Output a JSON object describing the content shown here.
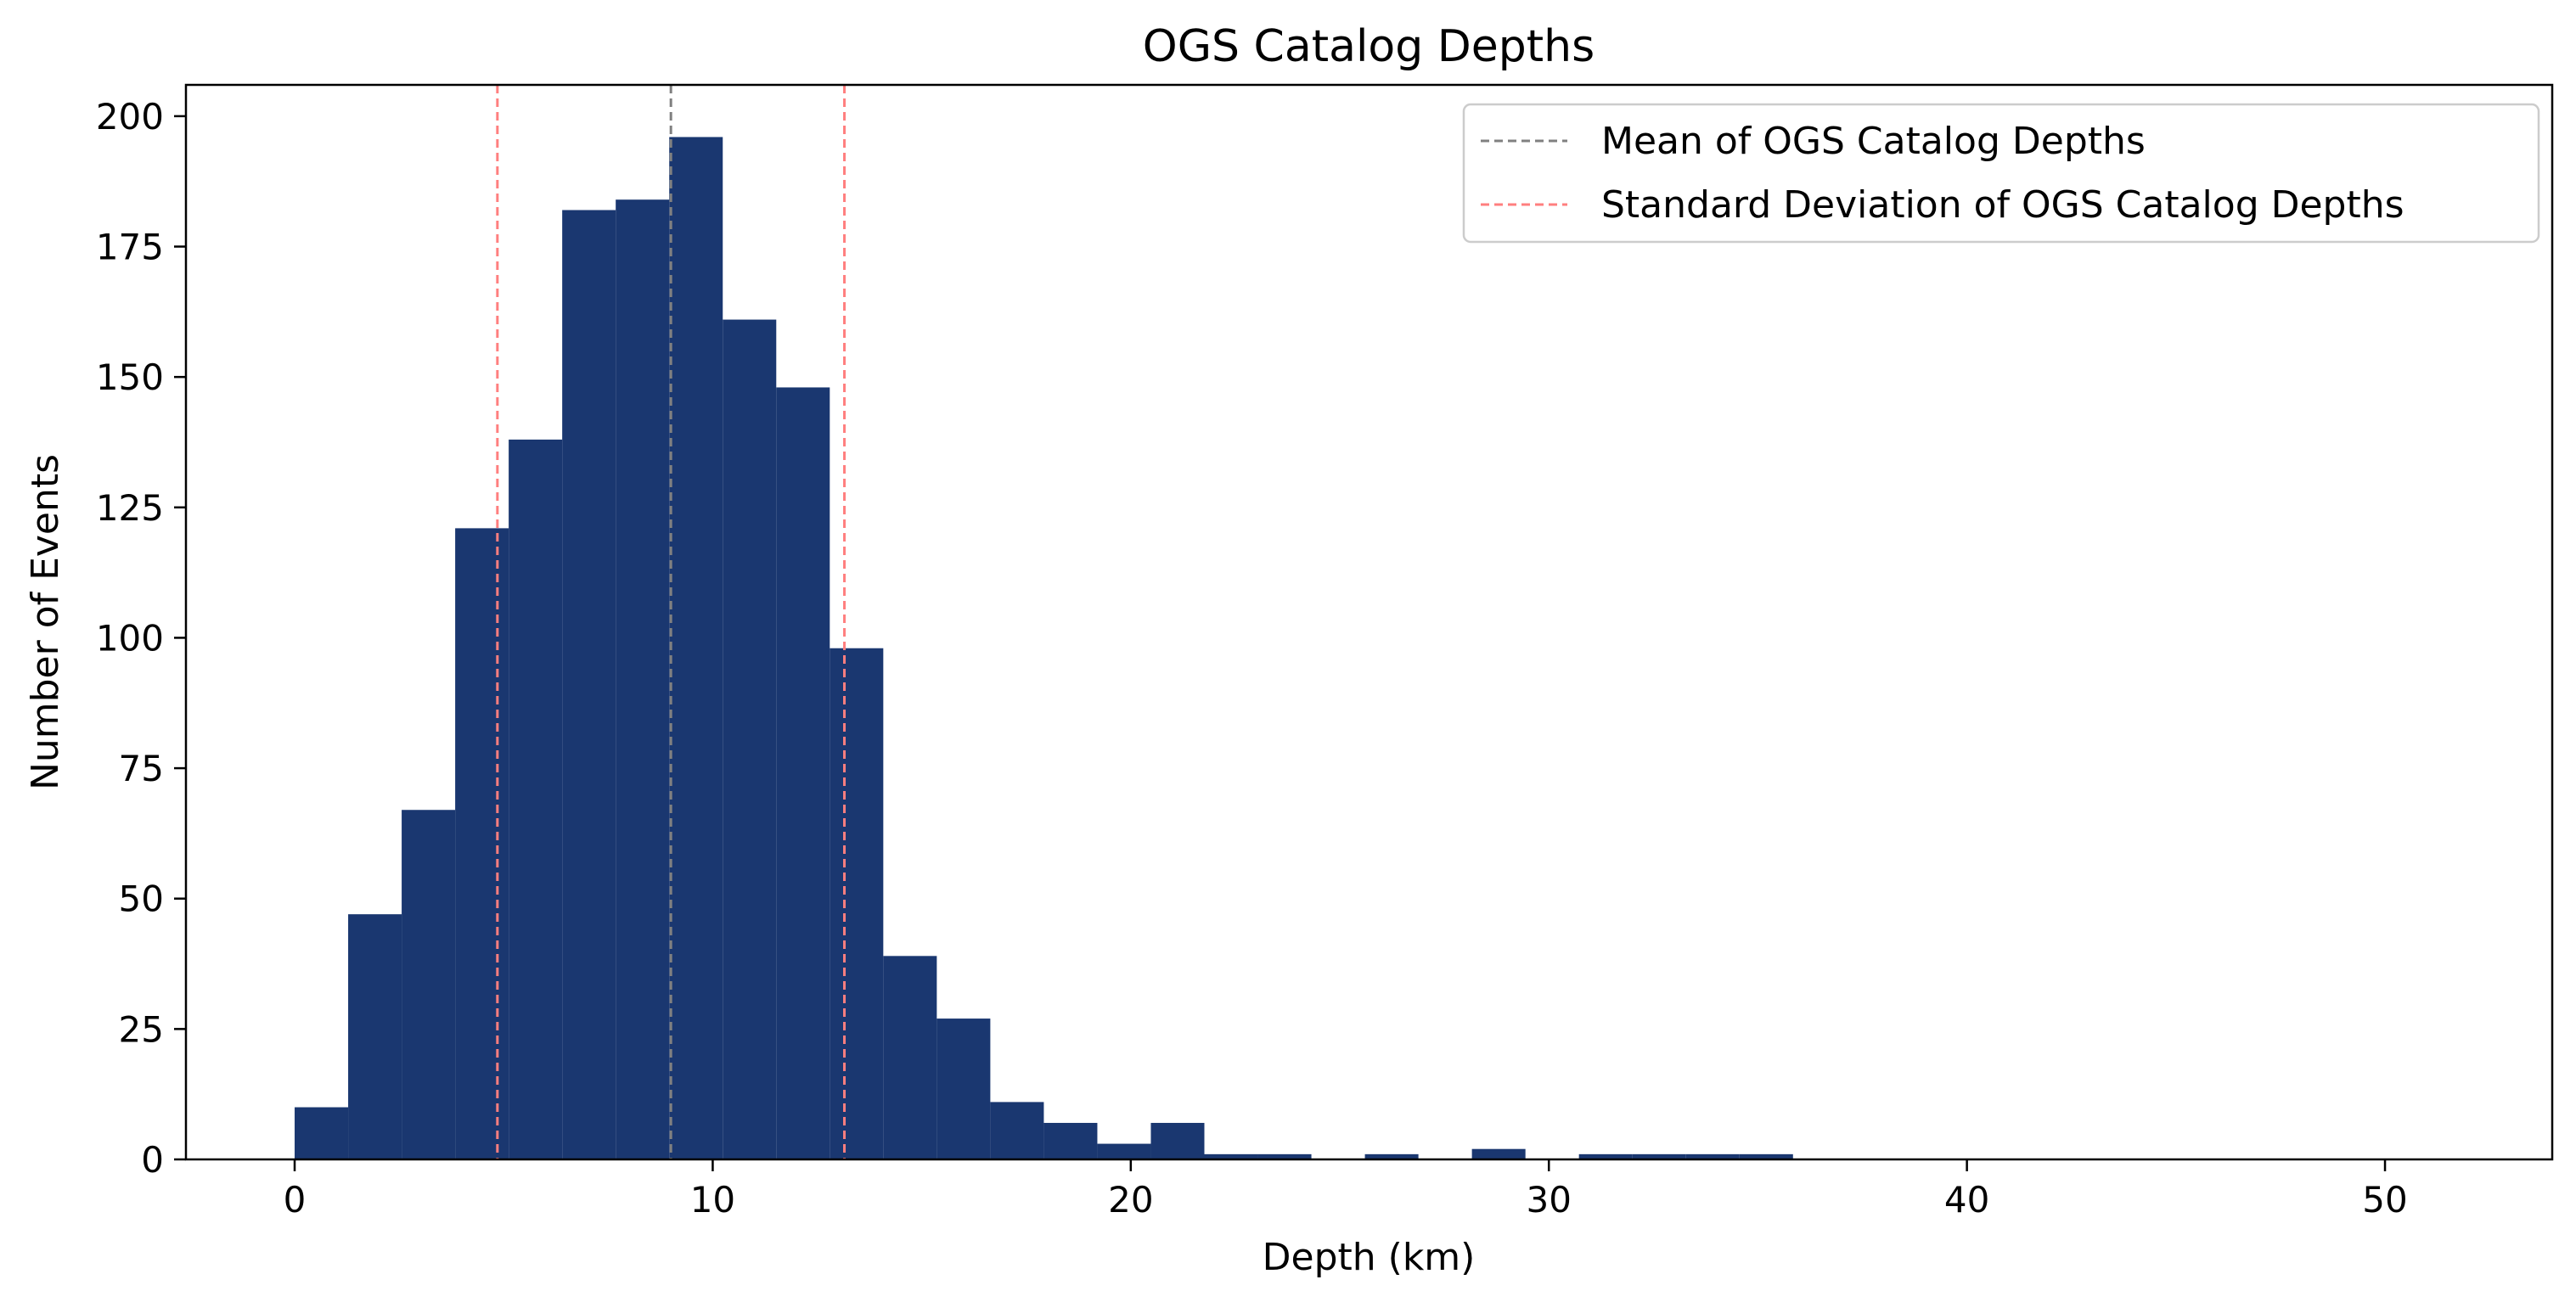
{
  "chart_data": {
    "type": "bar",
    "title": "OGS Catalog Depths",
    "xlabel": "Depth (km)",
    "ylabel": "Number of Events",
    "xlim": [
      -2.6,
      54
    ],
    "ylim": [
      0,
      206
    ],
    "x_ticks": [
      0,
      10,
      20,
      30,
      40,
      50
    ],
    "y_ticks": [
      0,
      25,
      50,
      75,
      100,
      125,
      150,
      175,
      200
    ],
    "grid": false,
    "legend_position": "top-right",
    "bin_edges": [
      0,
      1.28,
      2.56,
      3.84,
      5.12,
      6.4,
      7.68,
      8.96,
      10.24,
      11.52,
      12.8,
      14.08,
      15.36,
      16.64,
      17.92,
      19.2,
      20.48,
      21.76,
      23.04,
      24.32,
      25.6,
      26.88,
      28.16,
      29.44,
      30.72,
      32.0,
      33.28,
      34.56,
      35.84
    ],
    "values": [
      10,
      47,
      67,
      121,
      138,
      182,
      184,
      196,
      161,
      148,
      98,
      39,
      27,
      11,
      7,
      3,
      7,
      1,
      1,
      0,
      1,
      0,
      2,
      0,
      1,
      1,
      1,
      1
    ],
    "bar_color": "#1a3770",
    "lines": [
      {
        "name": "Mean of OGS Catalog Depths",
        "x": [
          9.0
        ],
        "color": "#808080",
        "style": "dashed"
      },
      {
        "name": "Standard Deviation of OGS Catalog Depths",
        "x": [
          4.85,
          13.15
        ],
        "color": "#ff7f7f",
        "style": "dashed"
      }
    ]
  }
}
